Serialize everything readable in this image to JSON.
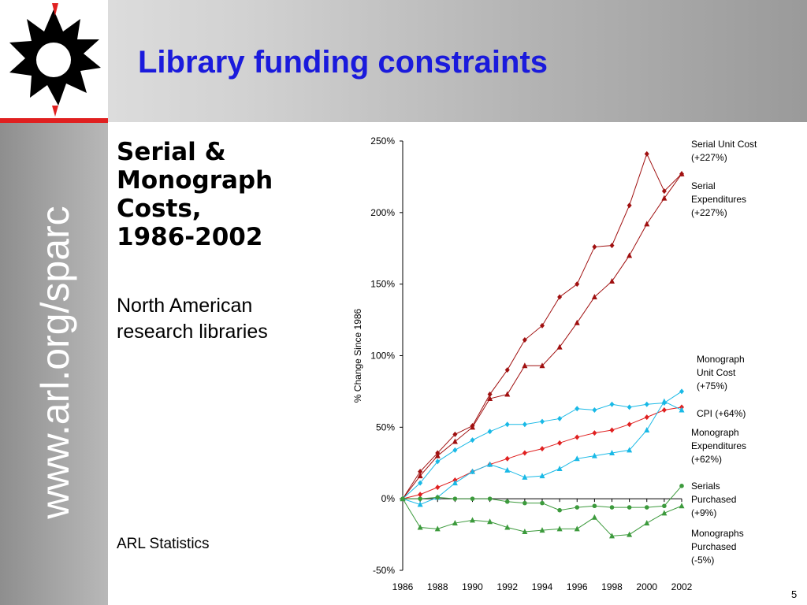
{
  "header": {
    "title": "Library funding constraints"
  },
  "sidebar": {
    "url": "www.arl.org/sparc"
  },
  "content": {
    "subtitle_lines": [
      "Serial &",
      "Monograph",
      "Costs,",
      "1986-2002"
    ],
    "description_lines": [
      "North American",
      "research libraries"
    ],
    "source": "ARL Statistics"
  },
  "footer": {
    "page_number": "5"
  },
  "colors": {
    "title": "#1a1adc",
    "accent_red": "#e02020",
    "series_darkred": "#a01010",
    "series_red": "#e02020",
    "series_cyan": "#19b9e6",
    "series_green": "#3c9a3c"
  },
  "chart_data": {
    "type": "line",
    "title": "",
    "xlabel": "",
    "ylabel": "% Change Since 1986",
    "x": [
      1986,
      1987,
      1988,
      1989,
      1990,
      1991,
      1992,
      1993,
      1994,
      1995,
      1996,
      1997,
      1998,
      1999,
      2000,
      2001,
      2002
    ],
    "x_tick_labels": [
      "1986",
      "1988",
      "1990",
      "1992",
      "1994",
      "1996",
      "1998",
      "2000",
      "2002"
    ],
    "ylim": [
      -50,
      250
    ],
    "y_ticks": [
      -50,
      0,
      50,
      100,
      150,
      200,
      250
    ],
    "y_tick_labels": [
      "-50%",
      "0%",
      "50%",
      "100%",
      "150%",
      "200%",
      "250%"
    ],
    "grid": false,
    "series": [
      {
        "name": "Serial Unit Cost",
        "label_lines": [
          "Serial Unit Cost",
          "(+227%)"
        ],
        "color": "#a01010",
        "marker": "diamond",
        "values": [
          0,
          19,
          32,
          45,
          51,
          73,
          90,
          111,
          121,
          141,
          150,
          176,
          177,
          205,
          241,
          215,
          227
        ]
      },
      {
        "name": "Serial Expenditures",
        "label_lines": [
          "Serial",
          "Expenditures",
          "(+227%)"
        ],
        "color": "#a01010",
        "marker": "triangle",
        "values": [
          0,
          16,
          30,
          40,
          50,
          70,
          73,
          93,
          93,
          106,
          123,
          141,
          152,
          170,
          192,
          210,
          227
        ]
      },
      {
        "name": "Monograph Unit Cost",
        "label_lines": [
          "Monograph",
          "Unit Cost",
          "(+75%)"
        ],
        "color": "#19b9e6",
        "marker": "diamond",
        "values": [
          0,
          11,
          26,
          34,
          41,
          47,
          52,
          52,
          54,
          56,
          63,
          62,
          66,
          64,
          66,
          67,
          75
        ]
      },
      {
        "name": "CPI",
        "label_lines": [
          "CPI (+64%)"
        ],
        "color": "#e02020",
        "marker": "diamond",
        "values": [
          0,
          3,
          8,
          13,
          19,
          24,
          28,
          32,
          35,
          39,
          43,
          46,
          48,
          52,
          57,
          62,
          64
        ]
      },
      {
        "name": "Monograph Expenditures",
        "label_lines": [
          "Monograph",
          "Expenditures",
          "(+62%)"
        ],
        "color": "#19b9e6",
        "marker": "triangle",
        "values": [
          0,
          -4,
          1,
          11,
          19,
          24,
          20,
          15,
          16,
          21,
          28,
          30,
          32,
          34,
          48,
          68,
          62
        ]
      },
      {
        "name": "Serials Purchased",
        "label_lines": [
          "Serials",
          "Purchased",
          "(+9%)"
        ],
        "color": "#3c9a3c",
        "marker": "circle",
        "values": [
          0,
          0,
          1,
          0,
          0,
          0,
          -2,
          -3,
          -3,
          -8,
          -6,
          -5,
          -6,
          -6,
          -6,
          -5,
          9
        ]
      },
      {
        "name": "Monographs Purchased",
        "label_lines": [
          "Monographs",
          "Purchased",
          "(-5%)"
        ],
        "color": "#3c9a3c",
        "marker": "triangle",
        "values": [
          0,
          -20,
          -21,
          -17,
          -15,
          -16,
          -20,
          -23,
          -22,
          -21,
          -21,
          -13,
          -26,
          -25,
          -17,
          -10,
          -5
        ]
      }
    ]
  }
}
